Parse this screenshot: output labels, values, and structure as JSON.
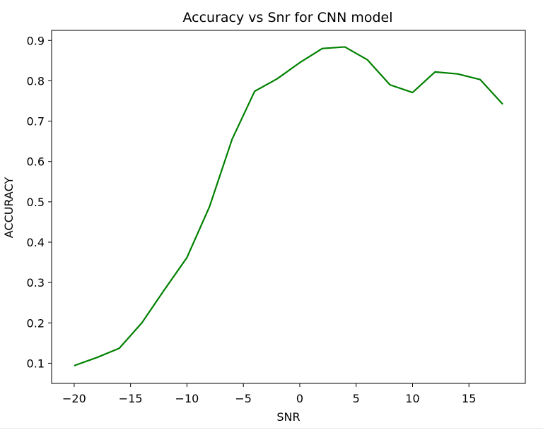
{
  "chart_data": {
    "type": "line",
    "title": "Accuracy vs Snr for CNN model",
    "xlabel": "SNR",
    "ylabel": "ACCURACY",
    "xlim": [
      -22,
      20
    ],
    "ylim": [
      0.05,
      0.925
    ],
    "xticks": [
      -20,
      -15,
      -10,
      -5,
      0,
      5,
      10,
      15
    ],
    "xtick_labels": [
      "−20",
      "−15",
      "−10",
      "−5",
      "0",
      "5",
      "10",
      "15"
    ],
    "yticks": [
      0.1,
      0.2,
      0.3,
      0.4,
      0.5,
      0.6,
      0.7,
      0.8,
      0.9
    ],
    "ytick_labels": [
      "0.1",
      "0.2",
      "0.3",
      "0.4",
      "0.5",
      "0.6",
      "0.7",
      "0.8",
      "0.9"
    ],
    "grid": false,
    "series": [
      {
        "color": "#008000",
        "x": [
          -20,
          -18,
          -16,
          -14,
          -12,
          -10,
          -8,
          -6,
          -4,
          -2,
          0,
          2,
          4,
          6,
          8,
          10,
          12,
          14,
          16,
          18
        ],
        "y": [
          0.094,
          0.114,
          0.137,
          0.2,
          0.282,
          0.362,
          0.488,
          0.655,
          0.774,
          0.805,
          0.845,
          0.88,
          0.884,
          0.852,
          0.79,
          0.771,
          0.822,
          0.817,
          0.803,
          0.742
        ]
      }
    ]
  }
}
